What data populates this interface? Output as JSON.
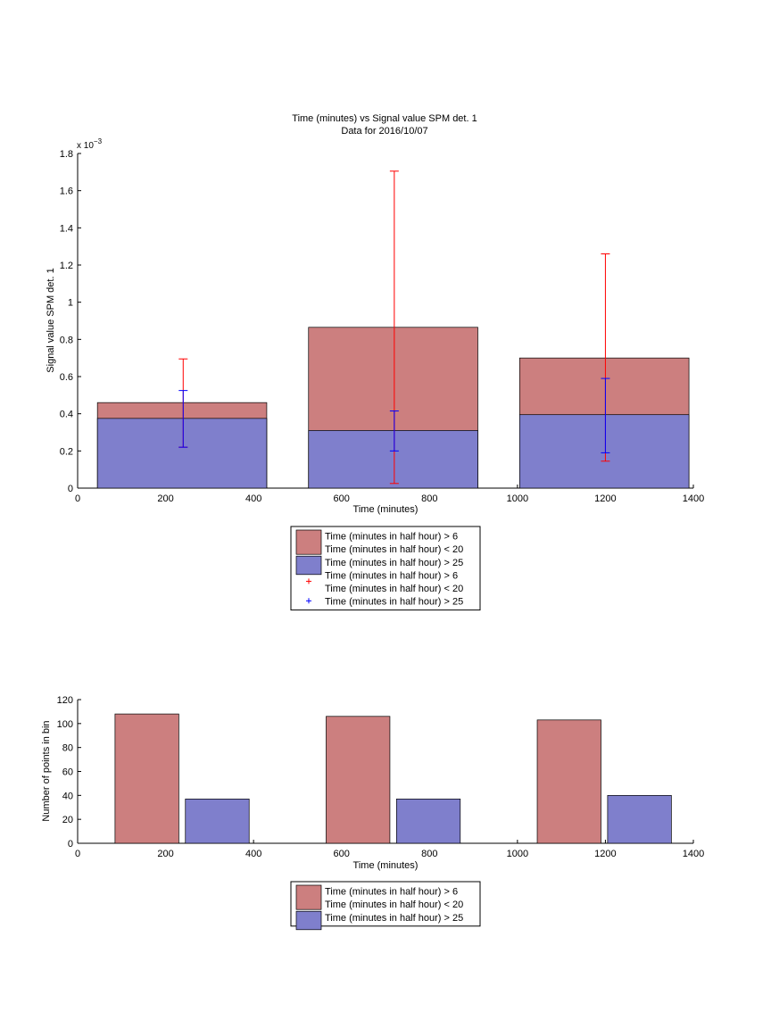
{
  "chart_data": [
    {
      "type": "bar",
      "title": "Time (minutes) vs Signal value SPM det. 1",
      "subtitle": "Data for 2016/10/07",
      "xlabel": "Time (minutes)",
      "ylabel": "Signal value SPM det. 1",
      "y_exponent_label": "x 10",
      "y_exponent": "−3",
      "xlim": [
        0,
        1400
      ],
      "ylim": [
        0,
        1.8
      ],
      "x_ticks": [
        "0",
        "200",
        "400",
        "600",
        "800",
        "1000",
        "1200",
        "1400"
      ],
      "y_ticks": [
        "0",
        "0.2",
        "0.4",
        "0.6",
        "0.8",
        "1",
        "1.2",
        "1.4",
        "1.6",
        "1.8"
      ],
      "grid": false,
      "legend_position": "below",
      "bins": [
        {
          "x_start": 45,
          "x_end": 430,
          "center": 240
        },
        {
          "x_start": 525,
          "x_end": 910,
          "center": 720
        },
        {
          "x_start": 1005,
          "x_end": 1390,
          "center": 1200
        }
      ],
      "series": [
        {
          "name": "Time (minutes in half hour) > 6\nTime (minutes in half hour) < 20",
          "color": "#cc7f7f",
          "values": [
            0.46,
            0.865,
            0.7
          ]
        },
        {
          "name": "Time (minutes in half hour) > 25",
          "color": "#7f7fcc",
          "values": [
            0.375,
            0.31,
            0.395
          ]
        }
      ],
      "error_bars": [
        {
          "name": "Time (minutes in half hour) > 6\nTime (minutes in half hour) < 20",
          "color": "#ff0000",
          "marker": "+",
          "lower": [
            0.22,
            0.025,
            0.145
          ],
          "upper": [
            0.695,
            1.705,
            1.26
          ]
        },
        {
          "name": "Time (minutes in half hour) > 25",
          "color": "#0000ff",
          "marker": "+",
          "lower": [
            0.22,
            0.2,
            0.19
          ],
          "upper": [
            0.525,
            0.415,
            0.59
          ]
        }
      ],
      "legend": [
        {
          "kind": "patch",
          "color": "#cc7f7f",
          "lines": [
            "Time (minutes in half hour) > 6",
            "Time (minutes in half hour) < 20"
          ]
        },
        {
          "kind": "patch",
          "color": "#7f7fcc",
          "lines": [
            "Time (minutes in half hour) > 25"
          ]
        },
        {
          "kind": "marker",
          "color": "#ff0000",
          "lines": [
            "Time (minutes in half hour) > 6",
            "Time (minutes in half hour) < 20"
          ]
        },
        {
          "kind": "marker",
          "color": "#0000ff",
          "lines": [
            "Time (minutes in half hour) > 25"
          ]
        }
      ]
    },
    {
      "type": "bar",
      "xlabel": "Time (minutes)",
      "ylabel": "Number of points in bin",
      "xlim": [
        0,
        1400
      ],
      "ylim": [
        0,
        120
      ],
      "x_ticks": [
        "0",
        "200",
        "400",
        "600",
        "800",
        "1000",
        "1200",
        "1400"
      ],
      "y_ticks": [
        "0",
        "20",
        "40",
        "60",
        "80",
        "100",
        "120"
      ],
      "grid": false,
      "legend_position": "below",
      "bars": [
        {
          "series": 0,
          "x_start": 85,
          "x_end": 230,
          "value": 108
        },
        {
          "series": 1,
          "x_start": 245,
          "x_end": 390,
          "value": 37
        },
        {
          "series": 0,
          "x_start": 565,
          "x_end": 710,
          "value": 106
        },
        {
          "series": 1,
          "x_start": 725,
          "x_end": 870,
          "value": 37
        },
        {
          "series": 0,
          "x_start": 1045,
          "x_end": 1190,
          "value": 103
        },
        {
          "series": 1,
          "x_start": 1205,
          "x_end": 1350,
          "value": 40
        }
      ],
      "series": [
        {
          "name": "Time (minutes in half hour) > 6\nTime (minutes in half hour) < 20",
          "color": "#cc7f7f"
        },
        {
          "name": "Time (minutes in half hour) > 25",
          "color": "#7f7fcc"
        }
      ],
      "legend": [
        {
          "kind": "patch",
          "color": "#cc7f7f",
          "lines": [
            "Time (minutes in half hour) > 6",
            "Time (minutes in half hour) < 20"
          ]
        },
        {
          "kind": "patch",
          "color": "#7f7fcc",
          "lines": [
            "Time (minutes in half hour) > 25"
          ]
        }
      ]
    }
  ]
}
